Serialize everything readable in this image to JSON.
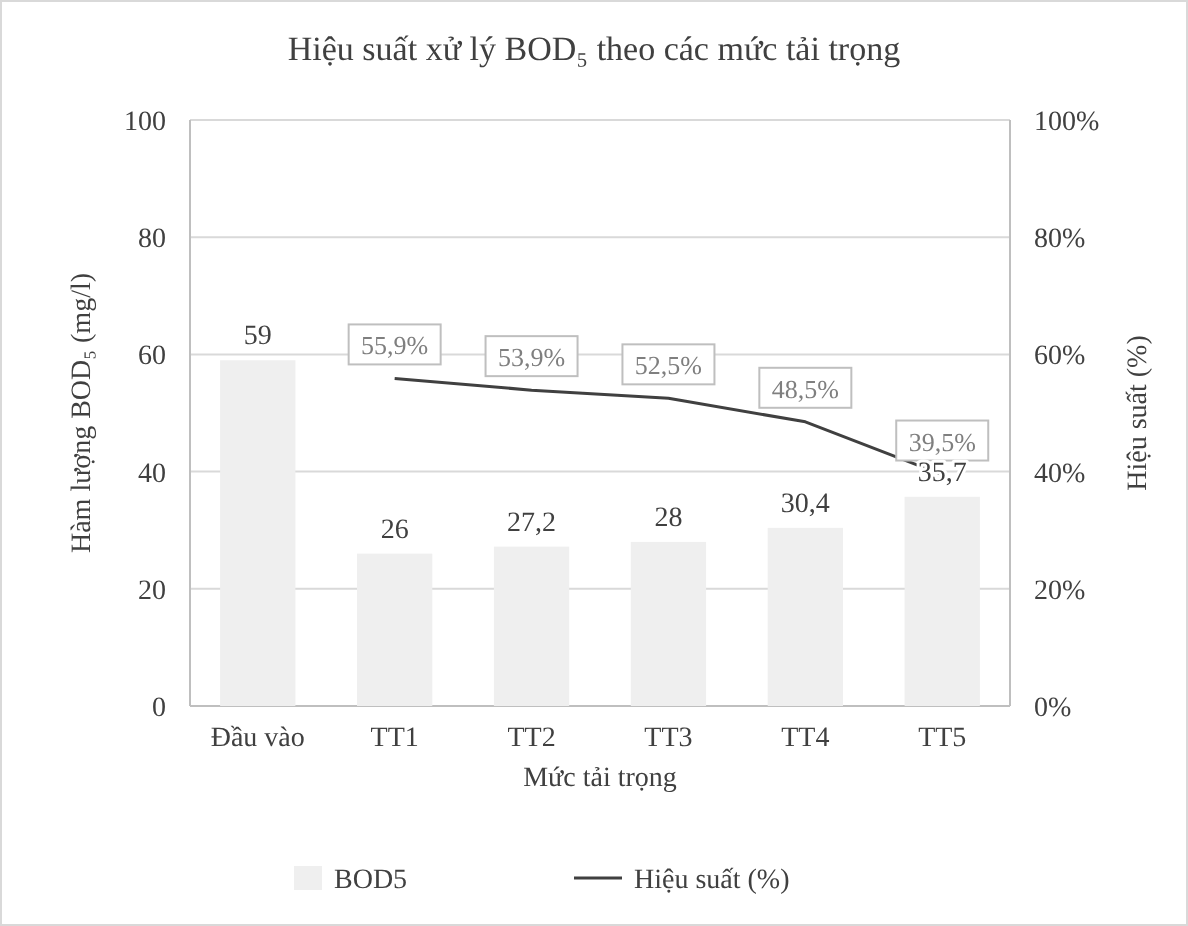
{
  "chart_data": {
    "type": "bar",
    "title": "Hiệu suất xử lý BOD₅ theo các mức tải trọng",
    "xlabel": "Mức tải trọng",
    "ylabel": "Hàm lượng BOD₅ (mg/l)",
    "y2label": "Hiệu suất (%)",
    "categories": [
      "Đầu vào",
      "TT1",
      "TT2",
      "TT3",
      "TT4",
      "TT5"
    ],
    "series": [
      {
        "name": "BOD5",
        "color": "#efefef",
        "values": [
          59,
          26,
          27.2,
          28,
          30.4,
          35.7
        ],
        "value_labels": [
          "59",
          "26",
          "27,2",
          "28",
          "30,4",
          "35,7"
        ]
      },
      {
        "name": "Hiệu suất (%)",
        "type": "line",
        "axis": "y2",
        "color": "#404040",
        "values": [
          null,
          55.9,
          53.9,
          52.5,
          48.5,
          39.5
        ],
        "value_labels": [
          null,
          "55,9%",
          "53,9%",
          "52,5%",
          "48,5%",
          "39,5%"
        ]
      }
    ],
    "ylim": [
      0,
      100
    ],
    "yticks": [
      0,
      20,
      40,
      60,
      80,
      100
    ],
    "y2lim": [
      0,
      100
    ],
    "y2ticks": [
      {
        "value": 0,
        "label": "0%"
      },
      {
        "value": 20,
        "label": "20%"
      },
      {
        "value": 40,
        "label": "40%"
      },
      {
        "value": 60,
        "label": "60%"
      },
      {
        "value": 80,
        "label": "80%"
      },
      {
        "value": 100,
        "label": "100%"
      }
    ],
    "grid": "y",
    "legend": "bottom",
    "marker": "none",
    "line_style": "solid"
  }
}
